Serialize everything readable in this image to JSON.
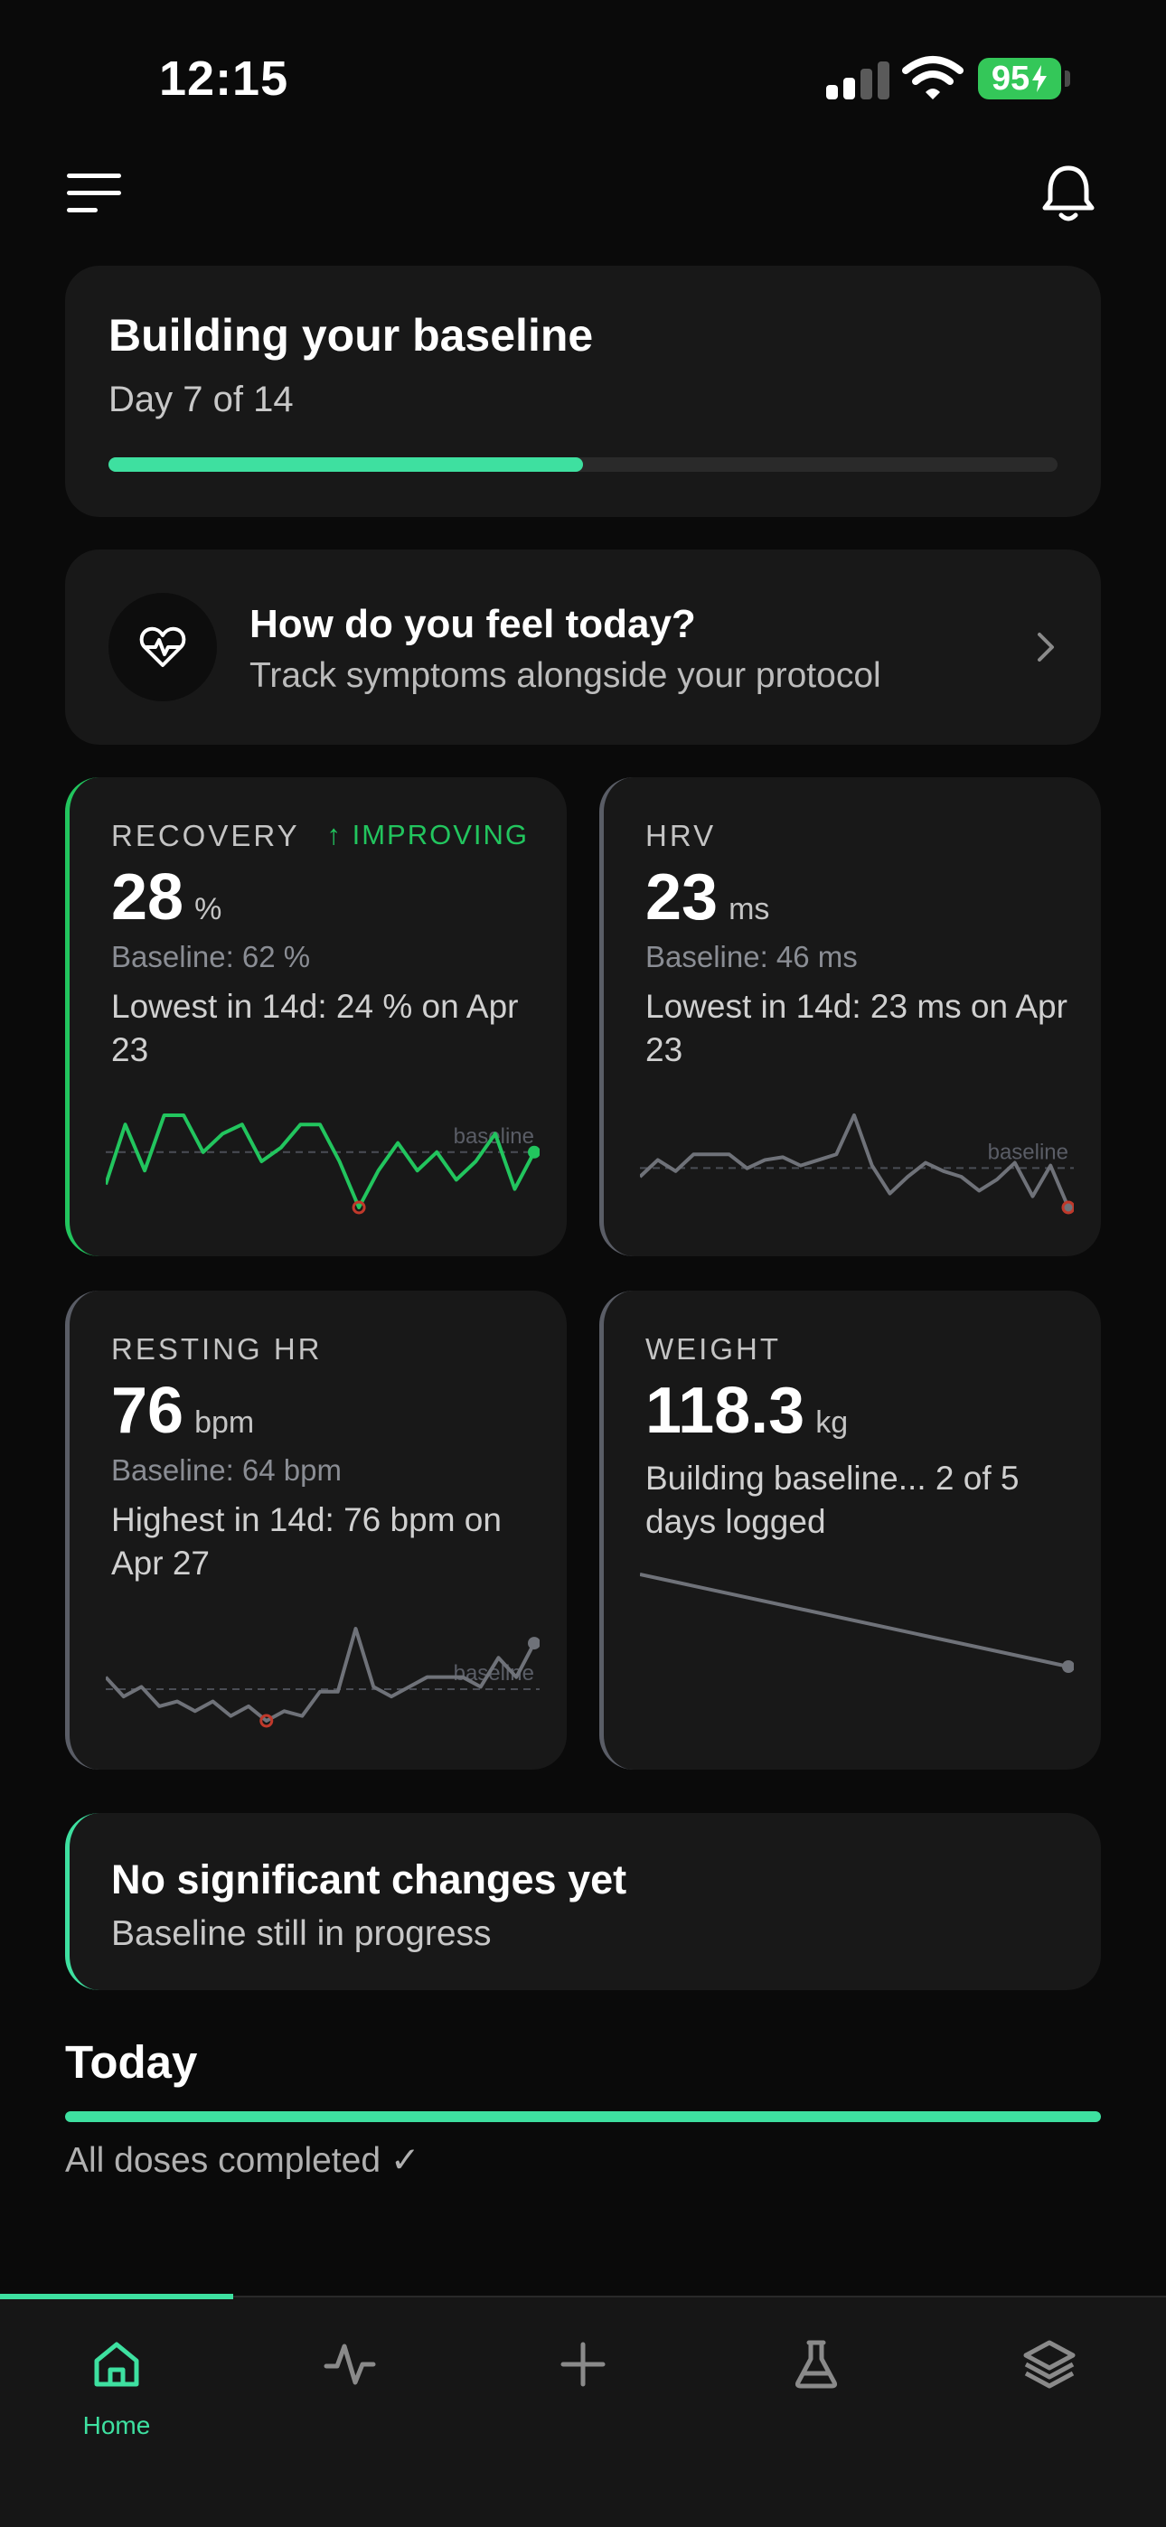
{
  "status_bar": {
    "time": "12:15",
    "battery": "95"
  },
  "header": {
    "menu_icon": "hamburger-menu-icon",
    "bell_icon": "bell-icon"
  },
  "baseline": {
    "title": "Building your baseline",
    "subtitle": "Day 7 of 14",
    "progress": 0.5
  },
  "feel": {
    "icon": "heart-pulse-icon",
    "title": "How do you feel today?",
    "subtitle": "Track symptoms alongside your protocol"
  },
  "metrics": [
    {
      "label": "RECOVERY",
      "trend": "↑ IMPROVING",
      "value": "28",
      "unit": "%",
      "baseline": "Baseline: 62 %",
      "note": "Lowest in 14d: 24 % on Apr 23",
      "spark_label": "baseline",
      "accent": "#22c55e",
      "series": [
        55,
        68,
        58,
        70,
        70,
        62,
        66,
        68,
        60,
        63,
        68,
        68,
        60,
        50,
        58,
        64,
        58,
        62,
        56,
        60,
        66,
        54,
        62
      ]
    },
    {
      "label": "HRV",
      "trend": "",
      "value": "23",
      "unit": "ms",
      "baseline": "Baseline: 46 ms",
      "note": "Lowest in 14d: 23 ms on Apr 23",
      "spark_label": "baseline",
      "accent": "#5a5d66",
      "series": [
        40,
        46,
        42,
        48,
        48,
        48,
        43,
        46,
        47,
        44,
        46,
        48,
        62,
        44,
        34,
        40,
        45,
        42,
        40,
        35,
        39,
        45,
        33,
        44,
        29
      ]
    },
    {
      "label": "RESTING HR",
      "trend": "",
      "value": "76",
      "unit": "bpm",
      "baseline": "Baseline: 64 bpm",
      "note": "Highest in 14d: 76 bpm on Apr 27",
      "spark_label": "baseline",
      "accent": "#5a5d66",
      "series": [
        66,
        62,
        64,
        60,
        61,
        59,
        61,
        58,
        60,
        57,
        59,
        58,
        63,
        63,
        76,
        64,
        62,
        64,
        66,
        66,
        66,
        64,
        70,
        66,
        73
      ]
    },
    {
      "label": "WEIGHT",
      "trend": "",
      "value": "118.3",
      "unit": "kg",
      "baseline": "",
      "note": "Building baseline... 2 of 5 days logged",
      "spark_label": "",
      "accent": "#5a5d66",
      "series": [
        121.0,
        118.3
      ]
    }
  ],
  "changes": {
    "title": "No significant changes yet",
    "subtitle": "Baseline still in progress"
  },
  "today": {
    "title": "Today",
    "status": "All doses completed ✓",
    "progress": 1.0
  },
  "tabs": [
    {
      "icon": "home-icon",
      "label": "Home",
      "active": true
    },
    {
      "icon": "activity-icon",
      "label": "",
      "active": false
    },
    {
      "icon": "plus-icon",
      "label": "",
      "active": false
    },
    {
      "icon": "flask-icon",
      "label": "",
      "active": false
    },
    {
      "icon": "layers-icon",
      "label": "",
      "active": false
    }
  ],
  "colors": {
    "accent": "#3ee0a0",
    "positive": "#22c55e",
    "alert": "#c0392b",
    "card": "#181818",
    "muted": "#5a5d66"
  }
}
